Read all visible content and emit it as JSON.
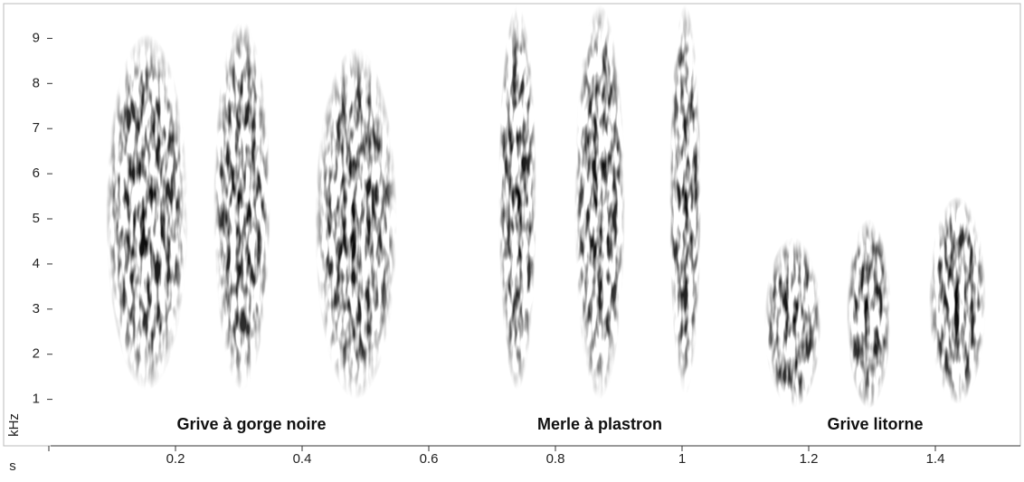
{
  "chart_data": {
    "type": "spectrogram",
    "xlabel": "s",
    "ylabel": "kHz",
    "xlim": [
      -0.07,
      1.52
    ],
    "ylim": [
      0,
      9.75
    ],
    "xticks": [
      0,
      0.2,
      0.4,
      0.6,
      0.8,
      1,
      1.2,
      1.4
    ],
    "xtick_labels_hidden_for": [
      0
    ],
    "yticks": [
      1,
      2,
      3,
      4,
      5,
      6,
      7,
      8,
      9
    ],
    "series": [
      {
        "name": "Grive à gorge noire",
        "syllables": [
          {
            "t": [
              0.09,
              0.22
            ],
            "f": [
              1.2,
              9.1
            ]
          },
          {
            "t": [
              0.26,
              0.35
            ],
            "f": [
              1.2,
              9.4
            ]
          },
          {
            "t": [
              0.42,
              0.55
            ],
            "f": [
              1.0,
              8.8
            ]
          }
        ]
      },
      {
        "name": "Merle à plastron",
        "syllables": [
          {
            "t": [
              0.71,
              0.77
            ],
            "f": [
              1.2,
              9.75
            ]
          },
          {
            "t": [
              0.83,
              0.91
            ],
            "f": [
              1.0,
              9.75
            ]
          },
          {
            "t": [
              0.98,
              1.03
            ],
            "f": [
              1.1,
              9.75
            ]
          }
        ]
      },
      {
        "name": "Grive litorne",
        "syllables": [
          {
            "t": [
              1.13,
              1.22
            ],
            "f": [
              0.8,
              4.6
            ]
          },
          {
            "t": [
              1.26,
              1.33
            ],
            "f": [
              0.8,
              5.0
            ]
          },
          {
            "t": [
              1.39,
              1.48
            ],
            "f": [
              0.9,
              5.5
            ]
          }
        ]
      }
    ]
  }
}
